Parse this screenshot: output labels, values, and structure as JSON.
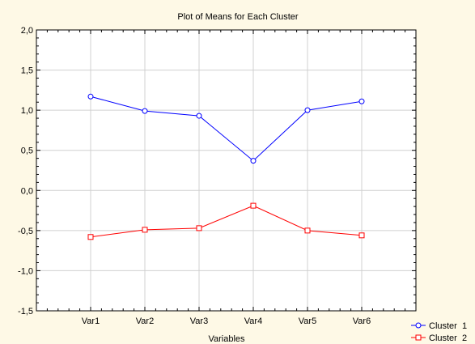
{
  "chart_data": {
    "type": "line",
    "title": "Plot of Means for Each Cluster",
    "xlabel": "Variables",
    "ylabel": "",
    "categories": [
      "Var1",
      "Var2",
      "Var3",
      "Var4",
      "Var5",
      "Var6"
    ],
    "ylim": [
      -1.5,
      2.0
    ],
    "yticks": [
      "-1,5",
      "-1,0",
      "-0,5",
      "0,0",
      "0,5",
      "1,0",
      "1,5",
      "2,0"
    ],
    "grid": true,
    "legend_position": "bottom-right",
    "series": [
      {
        "name": "Cluster  1",
        "values": [
          1.17,
          0.99,
          0.93,
          0.37,
          1.0,
          1.11
        ],
        "color": "#0000FF",
        "marker": "circle"
      },
      {
        "name": "Cluster  2",
        "values": [
          -0.58,
          -0.49,
          -0.47,
          -0.19,
          -0.5,
          -0.56
        ],
        "color": "#FF0000",
        "marker": "square"
      }
    ]
  }
}
